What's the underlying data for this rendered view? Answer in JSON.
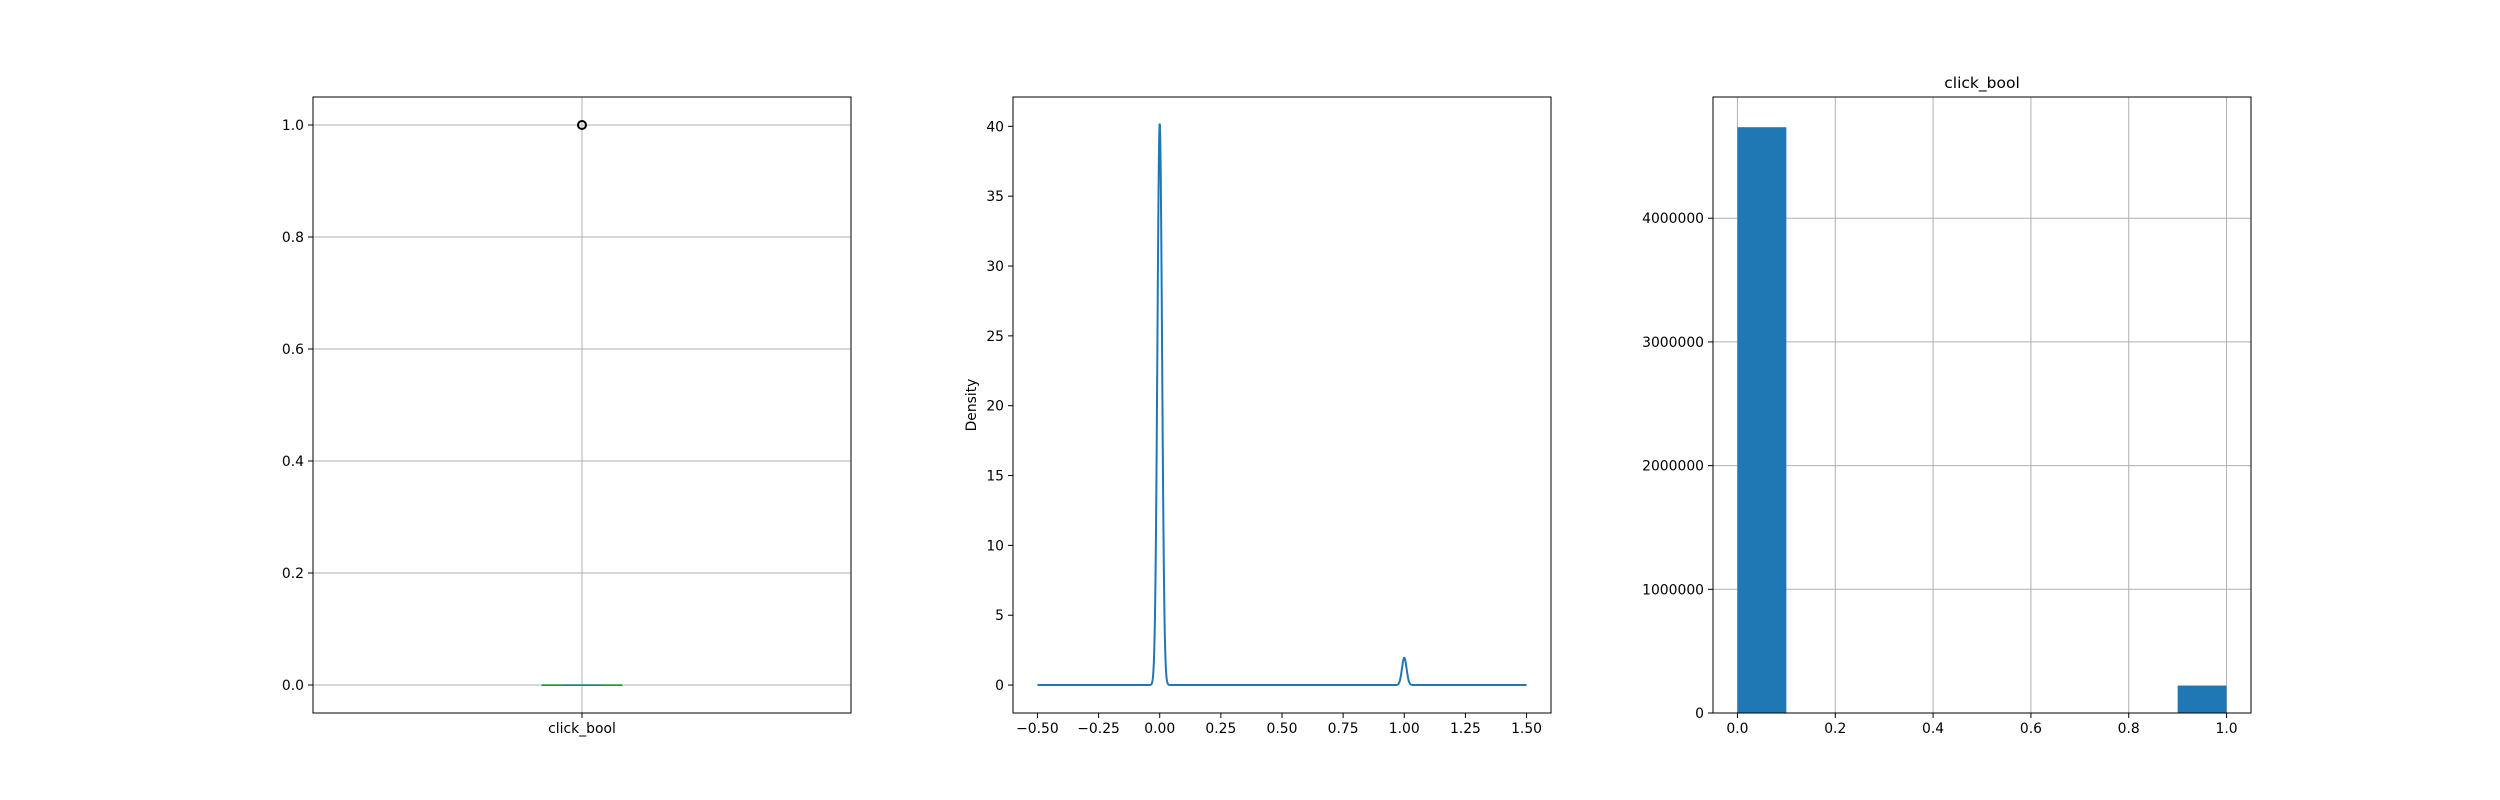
{
  "chart_data": [
    {
      "type": "box",
      "categories": [
        "click_bool"
      ],
      "yticks": [
        "0.0",
        "0.2",
        "0.4",
        "0.6",
        "0.8",
        "1.0"
      ],
      "ylim": [
        -0.05,
        1.05
      ],
      "box": {
        "q1": 0.0,
        "median": 0.0,
        "q3": 0.0,
        "whisker_low": 0.0,
        "whisker_high": 0.0
      },
      "outliers": [
        1.0
      ],
      "grid": true,
      "colors": {
        "box": "#1f77b4",
        "median": "#2ca02c",
        "outlier": "#000000"
      }
    },
    {
      "type": "line",
      "ylabel": "Density",
      "xlim": [
        -0.6,
        1.6
      ],
      "ylim": [
        -2.0,
        42.1
      ],
      "xticks": [
        "−0.50",
        "−0.25",
        "0.00",
        "0.25",
        "0.50",
        "0.75",
        "1.00",
        "1.25",
        "1.50"
      ],
      "yticks": [
        "0",
        "5",
        "10",
        "15",
        "20",
        "25",
        "30",
        "35",
        "40"
      ],
      "series": [
        {
          "peaks": [
            {
              "x": 0.0,
              "height": 40.2,
              "width": 0.0095
            },
            {
              "x": 1.0,
              "height": 1.95,
              "width": 0.0095
            }
          ],
          "x_range": [
            -0.5,
            1.5
          ],
          "color": "#1f77b4"
        }
      ],
      "grid": false
    },
    {
      "type": "bar",
      "title": "click_bool",
      "xlim": [
        -0.05,
        1.05
      ],
      "ylim": [
        0,
        4980000
      ],
      "xticks": [
        "0.0",
        "0.2",
        "0.4",
        "0.6",
        "0.8",
        "1.0"
      ],
      "yticks": [
        "0",
        "1000000",
        "2000000",
        "3000000",
        "4000000"
      ],
      "bins": [
        {
          "start": 0.0,
          "end": 0.1,
          "count": 4736000
        },
        {
          "start": 0.1,
          "end": 0.2,
          "count": 0
        },
        {
          "start": 0.2,
          "end": 0.3,
          "count": 0
        },
        {
          "start": 0.3,
          "end": 0.4,
          "count": 0
        },
        {
          "start": 0.4,
          "end": 0.5,
          "count": 0
        },
        {
          "start": 0.5,
          "end": 0.6,
          "count": 0
        },
        {
          "start": 0.6,
          "end": 0.7,
          "count": 0
        },
        {
          "start": 0.7,
          "end": 0.8,
          "count": 0
        },
        {
          "start": 0.8,
          "end": 0.9,
          "count": 0
        },
        {
          "start": 0.9,
          "end": 1.0,
          "count": 222000
        }
      ],
      "grid": true,
      "color": "#1f77b4"
    }
  ]
}
